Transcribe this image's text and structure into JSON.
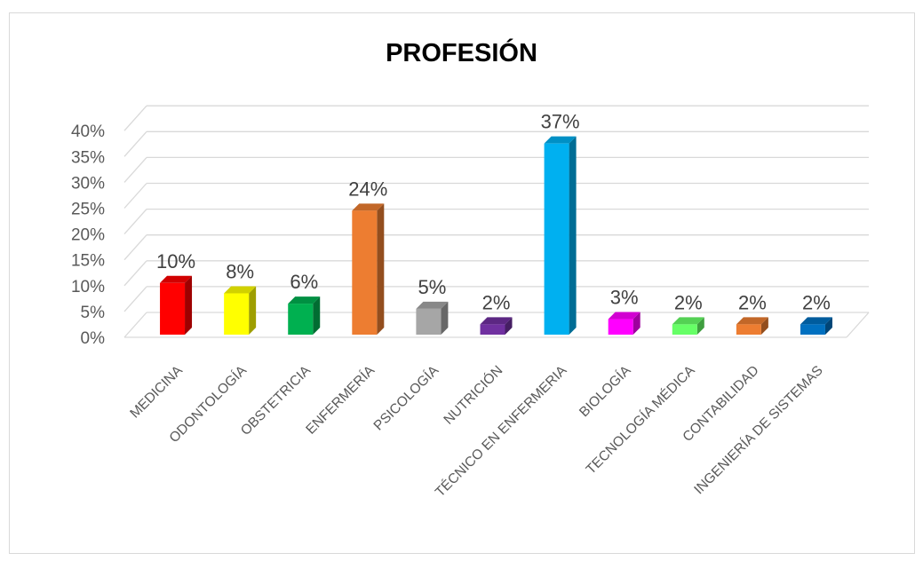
{
  "chart_data": {
    "type": "bar",
    "title": "PROFESIÓN",
    "categories": [
      "MEDICINA",
      "ODONTOLOGÍA",
      "OBSTETRICIA",
      "ENFERMERÍA",
      "PSICOLOGÍA",
      "NUTRICIÓN",
      "TÉCNICO EN ENFERMERIA",
      "BIOLOGÍA",
      "TECNOLOGÍA MÉDICA",
      "CONTABILIDAD",
      "INGENIERÍA DE SISTEMAS"
    ],
    "values": [
      10,
      8,
      6,
      24,
      5,
      2,
      37,
      3,
      2,
      2,
      2
    ],
    "data_labels": [
      "10%",
      "8%",
      "6%",
      "24%",
      "5%",
      "2%",
      "37%",
      "3%",
      "2%",
      "2%",
      "2%"
    ],
    "colors": [
      "#ff0000",
      "#ffff00",
      "#00b050",
      "#ed7d31",
      "#a6a6a6",
      "#7030a0",
      "#00b0f0",
      "#ff00ff",
      "#66ff66",
      "#ed7d31",
      "#0070c0"
    ],
    "y_ticks": [
      "0%",
      "5%",
      "10%",
      "15%",
      "20%",
      "25%",
      "30%",
      "35%",
      "40%"
    ],
    "ylim": [
      0,
      40
    ],
    "grid": true,
    "style": "3d-column"
  }
}
